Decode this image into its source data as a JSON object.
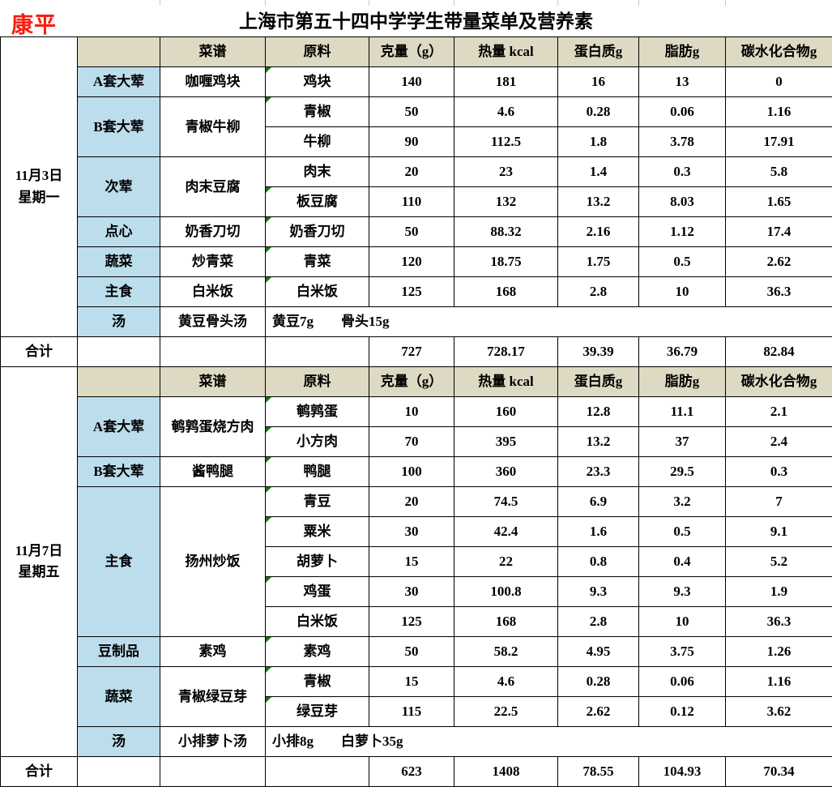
{
  "brand": "康平",
  "title": "上海市第五十四中学学生带量菜单及营养素",
  "colors": {
    "header_bg": "#ddd9c3",
    "category_bg": "#bcddeb",
    "brand_red": "#fb1c0f",
    "marker_green": "#008000"
  },
  "columns": [
    "菜谱",
    "原料",
    "克量（g）",
    "热量 kcal",
    "蛋白质g",
    "脂肪g",
    "碳水化合物g"
  ],
  "sections": [
    {
      "date": "11月3日",
      "weekday": "星期一",
      "groups": [
        {
          "category": "A套大荤",
          "dish": "咖喱鸡块",
          "items": [
            {
              "name": "鸡块",
              "grams": "140",
              "kcal": "181",
              "protein": "16",
              "fat": "13",
              "carbs": "0",
              "marker": true
            }
          ]
        },
        {
          "category": "B套大荤",
          "dish": "青椒牛柳",
          "items": [
            {
              "name": "青椒",
              "grams": "50",
              "kcal": "4.6",
              "protein": "0.28",
              "fat": "0.06",
              "carbs": "1.16",
              "marker": true
            },
            {
              "name": "牛柳",
              "grams": "90",
              "kcal": "112.5",
              "protein": "1.8",
              "fat": "3.78",
              "carbs": "17.91",
              "marker": false
            }
          ]
        },
        {
          "category": "次荤",
          "dish": "肉末豆腐",
          "items": [
            {
              "name": "肉末",
              "grams": "20",
              "kcal": "23",
              "protein": "1.4",
              "fat": "0.3",
              "carbs": "5.8",
              "marker": false
            },
            {
              "name": "板豆腐",
              "grams": "110",
              "kcal": "132",
              "protein": "13.2",
              "fat": "8.03",
              "carbs": "1.65",
              "marker": true
            }
          ]
        },
        {
          "category": "点心",
          "dish": "奶香刀切",
          "items": [
            {
              "name": "奶香刀切",
              "grams": "50",
              "kcal": "88.32",
              "protein": "2.16",
              "fat": "1.12",
              "carbs": "17.4",
              "marker": true
            }
          ]
        },
        {
          "category": "蔬菜",
          "dish": "炒青菜",
          "items": [
            {
              "name": "青菜",
              "grams": "120",
              "kcal": "18.75",
              "protein": "1.75",
              "fat": "0.5",
              "carbs": "2.62",
              "marker": true
            }
          ]
        },
        {
          "category": "主食",
          "dish": "白米饭",
          "items": [
            {
              "name": "白米饭",
              "grams": "125",
              "kcal": "168",
              "protein": "2.8",
              "fat": "10",
              "carbs": "36.3",
              "marker": true
            }
          ]
        }
      ],
      "soup": {
        "category": "汤",
        "dish": "黄豆骨头汤",
        "detail": "黄豆7g　　骨头15g"
      },
      "total": {
        "label": "合计",
        "values": [
          "727",
          "728.17",
          "39.39",
          "36.79",
          "82.84"
        ]
      }
    },
    {
      "date": "11月7日",
      "weekday": "星期五",
      "groups": [
        {
          "category": "A套大荤",
          "dish": "鹌鹑蛋烧方肉",
          "items": [
            {
              "name": "鹌鹑蛋",
              "grams": "10",
              "kcal": "160",
              "protein": "12.8",
              "fat": "11.1",
              "carbs": "2.1",
              "marker": true
            },
            {
              "name": "小方肉",
              "grams": "70",
              "kcal": "395",
              "protein": "13.2",
              "fat": "37",
              "carbs": "2.4",
              "marker": true
            }
          ]
        },
        {
          "category": "B套大荤",
          "dish": "酱鸭腿",
          "items": [
            {
              "name": "鸭腿",
              "grams": "100",
              "kcal": "360",
              "protein": "23.3",
              "fat": "29.5",
              "carbs": "0.3",
              "marker": true
            }
          ]
        },
        {
          "category": "主食",
          "dish": "扬州炒饭",
          "items": [
            {
              "name": "青豆",
              "grams": "20",
              "kcal": "74.5",
              "protein": "6.9",
              "fat": "3.2",
              "carbs": "7",
              "marker": true
            },
            {
              "name": "粟米",
              "grams": "30",
              "kcal": "42.4",
              "protein": "1.6",
              "fat": "0.5",
              "carbs": "9.1",
              "marker": true
            },
            {
              "name": "胡萝卜",
              "grams": "15",
              "kcal": "22",
              "protein": "0.8",
              "fat": "0.4",
              "carbs": "5.2",
              "marker": false
            },
            {
              "name": "鸡蛋",
              "grams": "30",
              "kcal": "100.8",
              "protein": "9.3",
              "fat": "9.3",
              "carbs": "1.9",
              "marker": true
            },
            {
              "name": "白米饭",
              "grams": "125",
              "kcal": "168",
              "protein": "2.8",
              "fat": "10",
              "carbs": "36.3",
              "marker": false
            }
          ]
        },
        {
          "category": "豆制品",
          "dish": "素鸡",
          "items": [
            {
              "name": "素鸡",
              "grams": "50",
              "kcal": "58.2",
              "protein": "4.95",
              "fat": "3.75",
              "carbs": "1.26",
              "marker": true
            }
          ]
        },
        {
          "category": "蔬菜",
          "dish": "青椒绿豆芽",
          "items": [
            {
              "name": "青椒",
              "grams": "15",
              "kcal": "4.6",
              "protein": "0.28",
              "fat": "0.06",
              "carbs": "1.16",
              "marker": true
            },
            {
              "name": "绿豆芽",
              "grams": "115",
              "kcal": "22.5",
              "protein": "2.62",
              "fat": "0.12",
              "carbs": "3.62",
              "marker": true
            }
          ]
        }
      ],
      "soup": {
        "category": "汤",
        "dish": "小排萝卜汤",
        "detail": "小排8g　　白萝卜35g"
      },
      "total": {
        "label": "合计",
        "values": [
          "623",
          "1408",
          "78.55",
          "104.93",
          "70.34"
        ]
      }
    }
  ]
}
